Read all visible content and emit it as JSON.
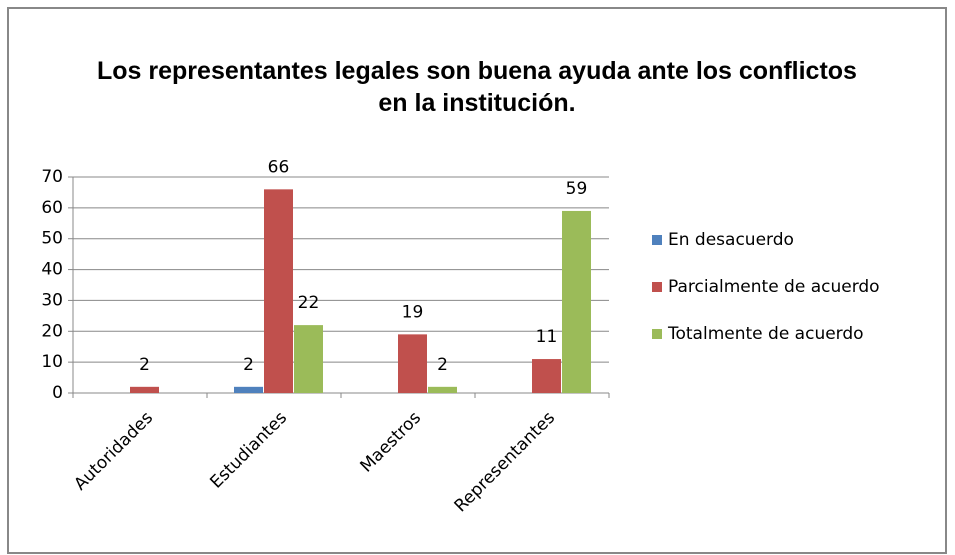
{
  "chart_data": {
    "type": "bar",
    "title": "Los representantes legales son buena ayuda ante los conflictos en la institución.",
    "categories": [
      "Autoridades",
      "Estudiantes",
      "Maestros",
      "Representantes"
    ],
    "series": [
      {
        "name": "En desacuerdo",
        "color": "#4f81bd",
        "values": [
          null,
          2,
          null,
          null
        ]
      },
      {
        "name": "Parcialmente de acuerdo",
        "color": "#c0504d",
        "values": [
          2,
          66,
          19,
          11
        ]
      },
      {
        "name": "Totalmente de acuerdo",
        "color": "#9bbb59",
        "values": [
          null,
          22,
          2,
          59
        ]
      }
    ],
    "ylim": [
      0,
      70
    ],
    "yticks": [
      0,
      10,
      20,
      30,
      40,
      50,
      60,
      70
    ],
    "grid": true,
    "legend": "right"
  }
}
